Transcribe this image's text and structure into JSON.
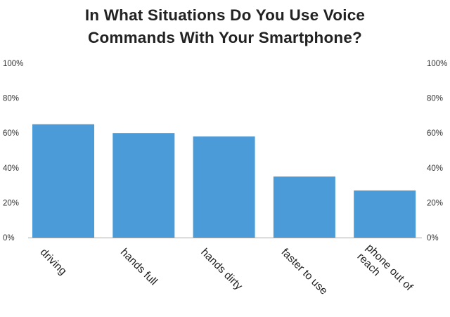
{
  "chart_data": {
    "type": "bar",
    "title_lines": [
      "In What Situations Do You Use Voice",
      "Commands With Your Smartphone?"
    ],
    "categories": [
      [
        "driving"
      ],
      [
        "hands full"
      ],
      [
        "hands dirty"
      ],
      [
        "faster to use"
      ],
      [
        "phone out of",
        "reach"
      ]
    ],
    "values": [
      65,
      60,
      58,
      35,
      27
    ],
    "ylim": [
      0,
      100
    ],
    "yticks": [
      0,
      20,
      40,
      60,
      80,
      100
    ],
    "yticklabels": [
      "0%",
      "20%",
      "40%",
      "60%",
      "80%",
      "100%"
    ],
    "right_axis_labels": true,
    "grid": false,
    "legend": "none",
    "colors": {
      "bar": "#4a9bd8",
      "axis": "#aaaaaa",
      "text": "#222222"
    }
  }
}
